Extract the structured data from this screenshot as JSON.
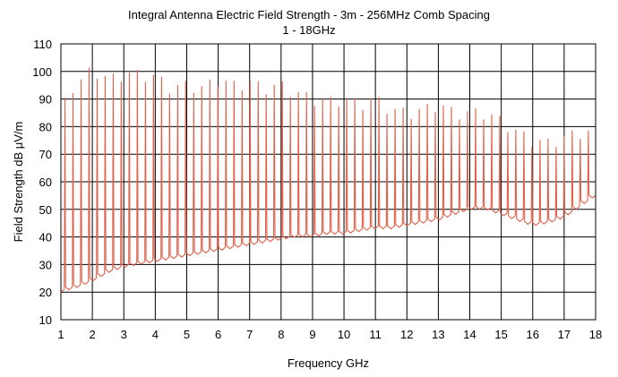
{
  "chart_data": {
    "type": "line",
    "title": "Integral Antenna Electric Field Strength - 3m - 256MHz Comb Spacing",
    "subtitle": "1 - 18GHz",
    "xlabel": "Frequency GHz",
    "ylabel": "Field Strength dB μV/m",
    "xlim": [
      1,
      18
    ],
    "ylim": [
      10,
      110
    ],
    "x_ticks": [
      1,
      2,
      3,
      4,
      5,
      6,
      7,
      8,
      9,
      10,
      11,
      12,
      13,
      14,
      15,
      16,
      17,
      18
    ],
    "y_ticks": [
      10,
      20,
      30,
      40,
      50,
      60,
      70,
      80,
      90,
      100,
      110
    ],
    "grid": true,
    "legend": "none",
    "series_color": "#e0604a",
    "comb_spacing_ghz": 0.256,
    "series": [
      {
        "noise_floor": {
          "x": [
            1.0,
            1.3,
            1.6,
            2.0,
            2.5,
            3.0,
            3.5,
            4.0,
            4.5,
            5.0,
            5.5,
            6.0,
            6.5,
            7.0,
            7.5,
            8.0,
            8.5,
            9.0,
            9.5,
            10.0,
            10.5,
            11.0,
            11.5,
            12.0,
            12.5,
            13.0,
            13.5,
            14.0,
            14.5,
            15.0,
            15.5,
            16.0,
            16.5,
            17.0,
            17.5,
            18.0
          ],
          "y": [
            20,
            21,
            22,
            24,
            27,
            29,
            30,
            31,
            32,
            33,
            34,
            35,
            36,
            37,
            38,
            39,
            40,
            40,
            41,
            41,
            42,
            43,
            43,
            44,
            45,
            46,
            48,
            50,
            50,
            48,
            46,
            44,
            45,
            47,
            51,
            55
          ]
        },
        "peak_envelope": {
          "x": [
            1.0,
            1.3,
            1.6,
            2.0,
            2.5,
            3.0,
            3.5,
            4.0,
            4.5,
            5.0,
            5.5,
            6.0,
            6.5,
            7.0,
            7.5,
            8.0,
            8.5,
            9.0,
            9.5,
            10.0,
            10.5,
            11.0,
            11.5,
            12.0,
            12.5,
            13.0,
            13.5,
            14.0,
            14.5,
            15.0,
            15.5,
            16.0,
            16.5,
            17.0,
            17.5,
            18.0
          ],
          "y": [
            85,
            94,
            96,
            101,
            97,
            99,
            99,
            98,
            94,
            95,
            94,
            97,
            95,
            96,
            94,
            95,
            92,
            90,
            89,
            90,
            88,
            90,
            86,
            85,
            86,
            88,
            85,
            85,
            85,
            82,
            78,
            75,
            74,
            76,
            78,
            78
          ]
        }
      }
    ]
  }
}
